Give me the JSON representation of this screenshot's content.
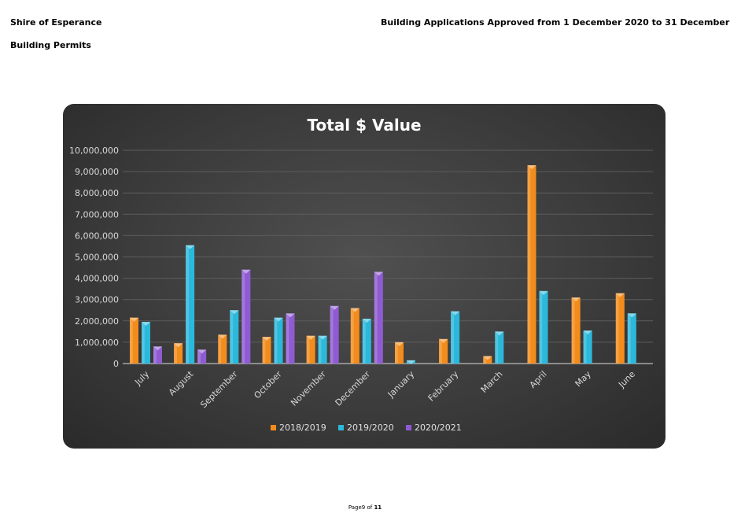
{
  "header": {
    "organisation": "Shire of Esperance",
    "department": "Building Permits",
    "report_title": "Building Applications Approved from 1 December 2020 to 31 December"
  },
  "footer": {
    "prefix": "Page9",
    "page": "9",
    "of": "of",
    "total": "11"
  },
  "chart_data": {
    "type": "bar",
    "title": "Total $ Value",
    "xlabel": "",
    "ylabel": "",
    "ylim": [
      0,
      10000000
    ],
    "yticks": [
      "0",
      "1,000,000",
      "2,000,000",
      "3,000,000",
      "4,000,000",
      "5,000,000",
      "6,000,000",
      "7,000,000",
      "8,000,000",
      "9,000,000",
      "10,000,000"
    ],
    "grid": true,
    "legend_position": "bottom",
    "categories": [
      "July",
      "August",
      "September",
      "October",
      "November",
      "December",
      "January",
      "February",
      "March",
      "April",
      "May",
      "June"
    ],
    "series": [
      {
        "name": "2018/2019",
        "color": "#f28c1c",
        "values": [
          2150000,
          950000,
          1350000,
          1250000,
          1300000,
          2600000,
          1000000,
          1150000,
          350000,
          9300000,
          3100000,
          3300000
        ]
      },
      {
        "name": "2019/2020",
        "color": "#2bb8db",
        "values": [
          1950000,
          5550000,
          2500000,
          2150000,
          1300000,
          2100000,
          150000,
          2450000,
          1500000,
          3400000,
          1550000,
          2350000
        ]
      },
      {
        "name": "2020/2021",
        "color": "#8f5bd2",
        "values": [
          800000,
          650000,
          4400000,
          2350000,
          2700000,
          4300000,
          null,
          null,
          null,
          null,
          null,
          null
        ]
      }
    ]
  }
}
